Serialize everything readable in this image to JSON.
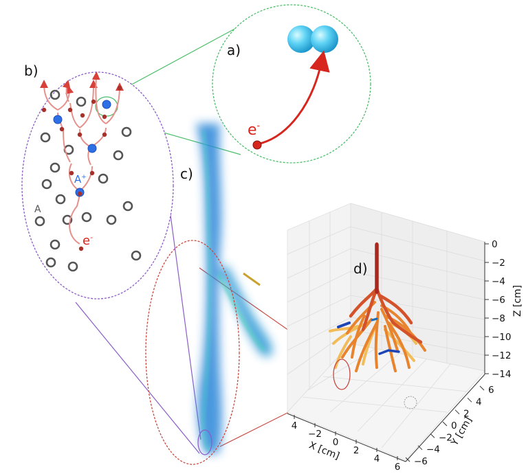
{
  "panels": {
    "a": {
      "label": "a)",
      "electron_label": "e",
      "electron_sup": "-"
    },
    "b": {
      "label": "b)",
      "atom_label": "A",
      "ion_label": "A",
      "ion_sup": "+",
      "electron_label": "e",
      "electron_sup": "-"
    },
    "c": {
      "label": "c)"
    },
    "d": {
      "label": "d)"
    }
  },
  "plot3d": {
    "z_axis": {
      "label": "Z [cm]",
      "ticks": [
        "0",
        "−2",
        "−4",
        "−6",
        "−8",
        "−10",
        "−12",
        "−14"
      ]
    },
    "y_axis": {
      "label": "Y [cm]",
      "ticks": [
        "6",
        "4",
        "2",
        "0",
        "−2",
        "−4",
        "−6"
      ]
    },
    "x_axis": {
      "label": "X [cm]",
      "ticks": [
        "4",
        "−2",
        "0",
        "2",
        "4",
        "6"
      ]
    }
  },
  "colors": {
    "streamer": "#1f7fd6",
    "zoom_a": "#4cbf6a",
    "zoom_b": "#8b5cc7",
    "zoom_c": "#c9493f",
    "electron": "#d7261e",
    "ion": "#2f6fe6",
    "molecule": "#5fd3f5"
  }
}
